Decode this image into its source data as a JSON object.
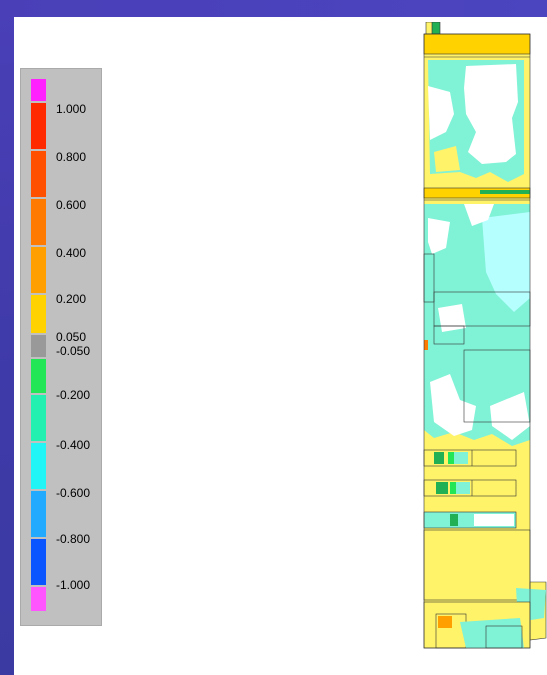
{
  "legend": {
    "swatch_colors": [
      "#ff22ff",
      "#ff2a00",
      "#ff5000",
      "#ff7a00",
      "#ffa000",
      "#ffd200",
      "#999999",
      "#22e655",
      "#22f0b0",
      "#22f5f5",
      "#22aaff",
      "#0a55ff",
      "#ff55ff"
    ],
    "tick_labels": [
      "1.000",
      "0.800",
      "0.600",
      "0.400",
      "0.200",
      "0.050",
      "-0.050",
      "-0.200",
      "-0.400",
      "-0.600",
      "-0.800",
      "-1.000"
    ]
  },
  "colors": {
    "frame": "#4a3fb7",
    "contour_yellow": "#fff36a",
    "contour_cyan": "#80f2d6",
    "contour_aqua": "#b5ffff",
    "contour_white": "#ffffff",
    "outline": "#333333"
  }
}
